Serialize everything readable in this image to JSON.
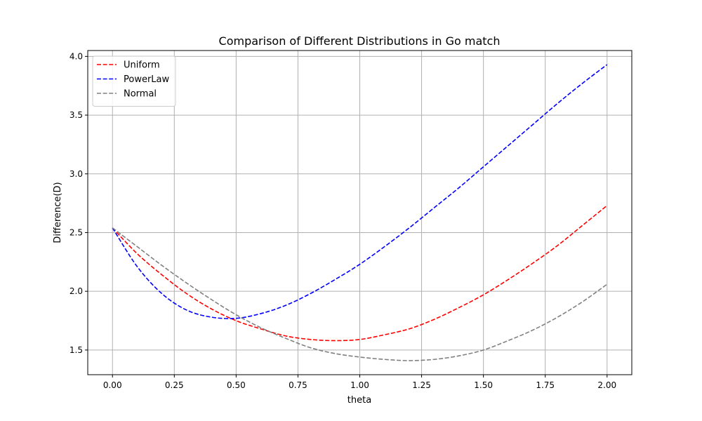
{
  "chart_data": {
    "type": "line",
    "title": "Comparison of Different Distributions in Go match",
    "xlabel": "theta",
    "ylabel": "Difference(D)",
    "xlim": [
      -0.1,
      2.1
    ],
    "ylim": [
      1.29,
      4.05
    ],
    "xticks": [
      "0.00",
      "0.25",
      "0.50",
      "0.75",
      "1.00",
      "1.25",
      "1.50",
      "1.75",
      "2.00"
    ],
    "yticks": [
      "1.5",
      "2.0",
      "2.5",
      "3.0",
      "3.5",
      "4.0"
    ],
    "grid": true,
    "legend_position": "top-left",
    "x": [
      0,
      0.1,
      0.2,
      0.3,
      0.4,
      0.5,
      0.6,
      0.7,
      0.8,
      0.9,
      1.0,
      1.1,
      1.2,
      1.3,
      1.4,
      1.5,
      1.6,
      1.7,
      1.8,
      1.9,
      2.0
    ],
    "series": [
      {
        "name": "Uniform",
        "color": "#ff0000",
        "values": [
          2.54,
          2.32,
          2.14,
          1.98,
          1.85,
          1.75,
          1.68,
          1.62,
          1.59,
          1.58,
          1.59,
          1.63,
          1.68,
          1.76,
          1.86,
          1.97,
          2.1,
          2.24,
          2.39,
          2.56,
          2.73
        ]
      },
      {
        "name": "PowerLaw",
        "color": "#0000ff",
        "values": [
          2.54,
          2.21,
          1.98,
          1.84,
          1.78,
          1.77,
          1.81,
          1.88,
          1.98,
          2.1,
          2.23,
          2.38,
          2.54,
          2.71,
          2.88,
          3.06,
          3.24,
          3.42,
          3.6,
          3.77,
          3.93
        ]
      },
      {
        "name": "Normal",
        "color": "#808080",
        "values": [
          2.54,
          2.38,
          2.22,
          2.07,
          1.93,
          1.8,
          1.69,
          1.6,
          1.52,
          1.47,
          1.44,
          1.42,
          1.41,
          1.42,
          1.45,
          1.5,
          1.58,
          1.67,
          1.78,
          1.91,
          2.06
        ]
      }
    ]
  }
}
